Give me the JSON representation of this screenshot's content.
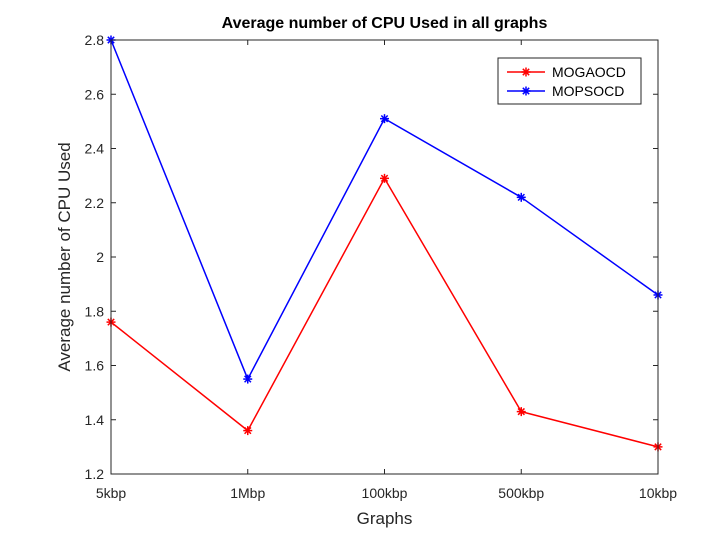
{
  "chart_data": {
    "type": "line",
    "title": "Average number of CPU Used in all graphs",
    "xlabel": "Graphs",
    "ylabel": "Average number of CPU Used",
    "categories": [
      "5kbp",
      "1Mbp",
      "100kbp",
      "500kbp",
      "10kbp"
    ],
    "ylim": [
      1.2,
      2.8
    ],
    "yticks": [
      1.2,
      1.4,
      1.6,
      1.8,
      2,
      2.2,
      2.4,
      2.6,
      2.8
    ],
    "ytick_labels": [
      "1.2",
      "1.4",
      "1.6",
      "1.8",
      "2",
      "2.2",
      "2.4",
      "2.6",
      "2.8"
    ],
    "grid": false,
    "legend_position": "top-right",
    "series": [
      {
        "name": "MOGAOCD",
        "color": "#ff0000",
        "marker": "asterisk",
        "values": [
          1.76,
          1.36,
          2.29,
          1.43,
          1.3
        ]
      },
      {
        "name": "MOPSOCD",
        "color": "#0000ff",
        "marker": "asterisk",
        "values": [
          2.8,
          1.55,
          2.51,
          2.22,
          1.86
        ]
      }
    ]
  }
}
